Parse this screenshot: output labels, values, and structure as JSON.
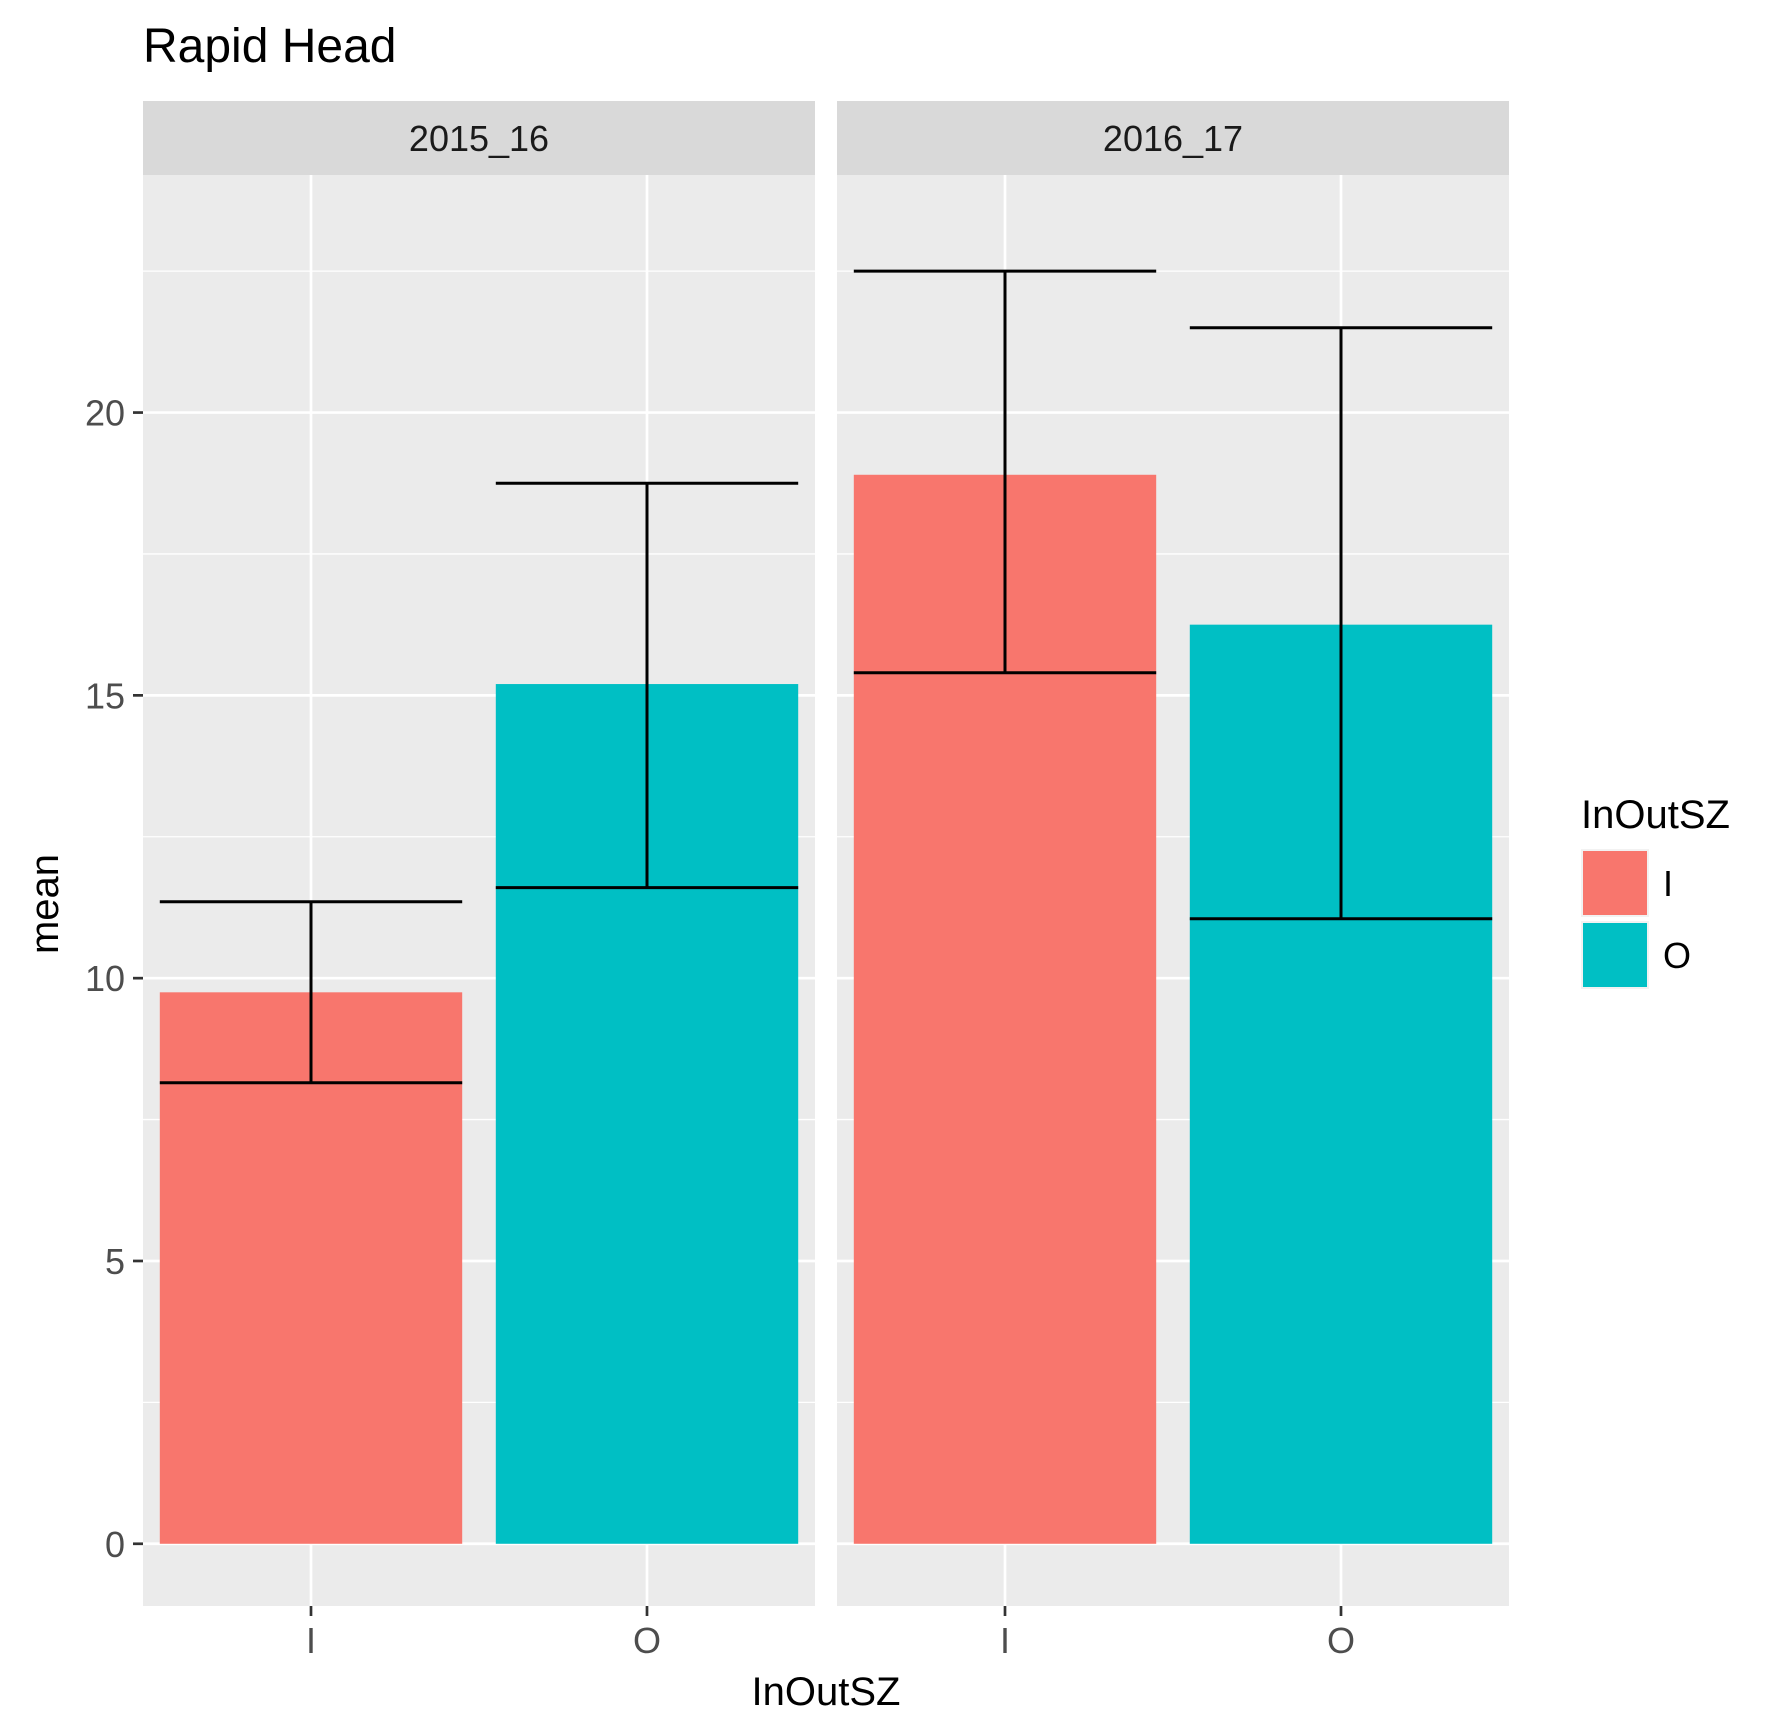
{
  "chart_data": {
    "type": "bar",
    "title": "Rapid Head",
    "xlabel": "InOutSZ",
    "ylabel": "mean",
    "ylim": [
      -1.1,
      24.2
    ],
    "yticks": [
      0,
      5,
      10,
      15,
      20
    ],
    "grid": true,
    "legend": {
      "title": "InOutSZ",
      "position": "right",
      "items": [
        {
          "label": "I",
          "color": "#F8766D"
        },
        {
          "label": "O",
          "color": "#00BFC4"
        }
      ]
    },
    "categories": [
      "I",
      "O"
    ],
    "colors": {
      "I": "#F8766D",
      "O": "#00BFC4"
    },
    "facets": [
      {
        "label": "2015_16",
        "bars": [
          {
            "category": "I",
            "value": 9.75,
            "err_low": 8.15,
            "err_high": 11.35
          },
          {
            "category": "O",
            "value": 15.2,
            "err_low": 11.6,
            "err_high": 18.75
          }
        ]
      },
      {
        "label": "2016_17",
        "bars": [
          {
            "category": "I",
            "value": 18.9,
            "err_low": 15.4,
            "err_high": 22.5
          },
          {
            "category": "O",
            "value": 16.25,
            "err_low": 11.05,
            "err_high": 21.5
          }
        ]
      }
    ]
  }
}
